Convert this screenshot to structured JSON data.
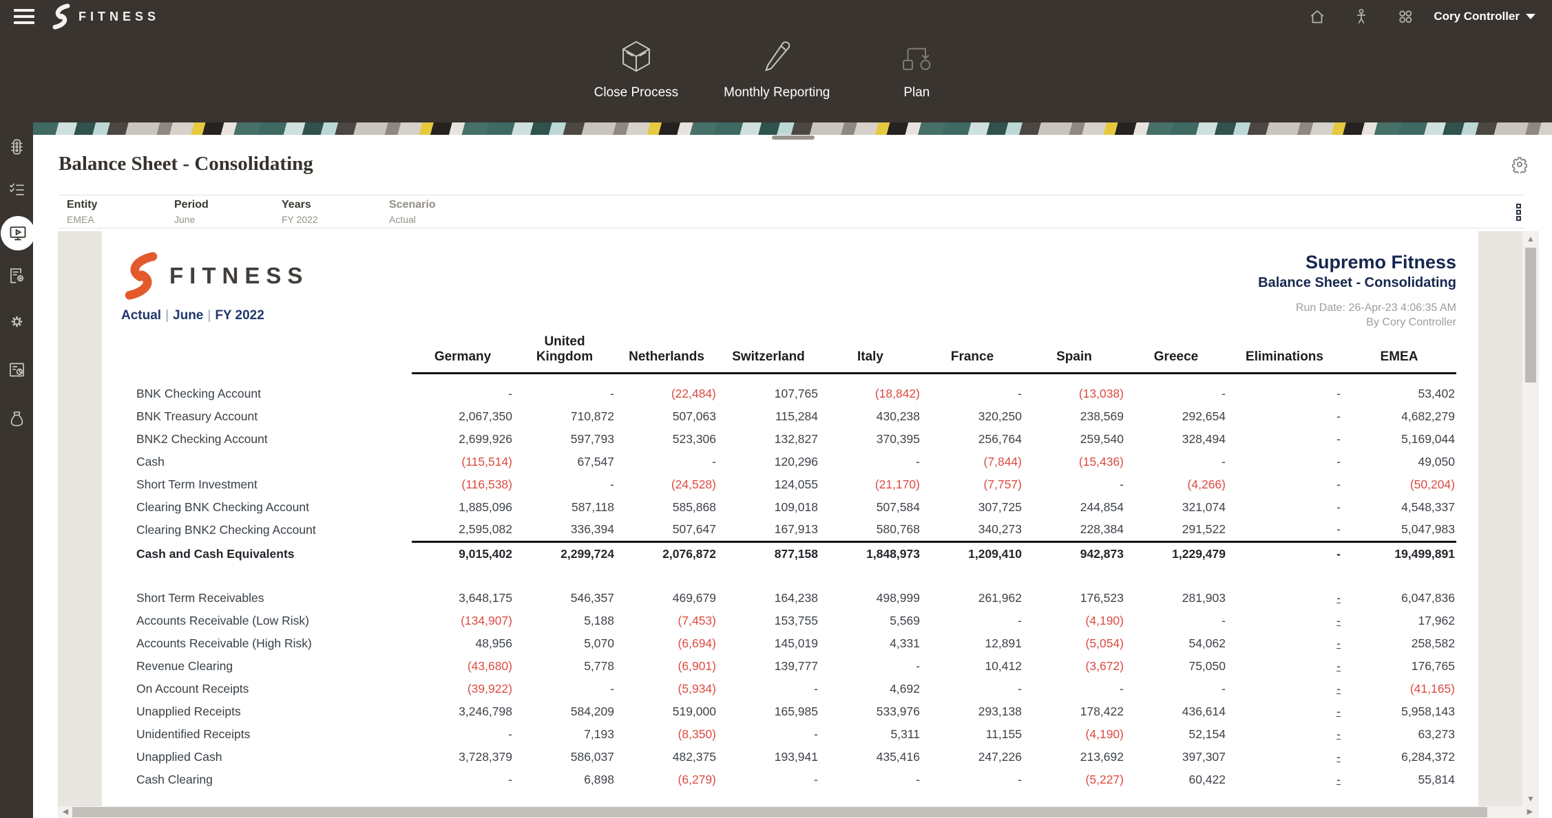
{
  "colors": {
    "header_bg": "#39342f",
    "accent_orange": "#e25a2c",
    "negative_red": "#dc4b41",
    "navy": "#16274f",
    "canvas_grey": "#e9e6e2"
  },
  "topbar": {
    "brand": "FITNESS",
    "user": "Cory Controller",
    "icons": [
      "home-icon",
      "person-icon",
      "waffle-grid-icon"
    ]
  },
  "nav_cards": [
    {
      "label": "Close Process",
      "icon": "cube-icon"
    },
    {
      "label": "Monthly Reporting",
      "icon": "pencil-icon"
    },
    {
      "label": "Plan",
      "icon": "flow-icon"
    }
  ],
  "sidebar": {
    "items": [
      {
        "icon": "approvals-icon",
        "active": false
      },
      {
        "icon": "tasks-icon",
        "active": false
      },
      {
        "icon": "reports-player-icon",
        "active": true
      },
      {
        "icon": "form-settings-icon",
        "active": false
      },
      {
        "icon": "gear-icon",
        "active": false
      },
      {
        "icon": "dashboard-icon",
        "active": false
      },
      {
        "icon": "money-bag-icon",
        "active": false
      }
    ]
  },
  "page": {
    "title": "Balance Sheet - Consolidating"
  },
  "pov": [
    {
      "label": "Entity",
      "value": "EMEA",
      "muted": false
    },
    {
      "label": "Period",
      "value": "June",
      "muted": false
    },
    {
      "label": "Years",
      "value": "FY 2022",
      "muted": false
    },
    {
      "label": "Scenario",
      "value": "Actual",
      "muted": true
    }
  ],
  "report": {
    "brand": "FITNESS",
    "pov_line": {
      "scenario": "Actual",
      "period": "June",
      "year": "FY 2022",
      "separator": "|"
    },
    "company": "Supremo Fitness",
    "title": "Balance Sheet - Consolidating",
    "run_date": "Run Date: 26-Apr-23 4:06:35 AM",
    "run_by": "By Cory Controller",
    "table": {
      "columns": [
        "Germany",
        "United\nKingdom",
        "Netherlands",
        "Switzerland",
        "Italy",
        "France",
        "Spain",
        "Greece",
        "Eliminations",
        "EMEA"
      ],
      "rows": [
        {
          "label": "BNK Checking Account",
          "v": [
            "-",
            "-",
            "(22,484)",
            "107,765",
            "(18,842)",
            "-",
            "(13,038)",
            "-",
            "-",
            "53,402"
          ]
        },
        {
          "label": "BNK Treasury Account",
          "v": [
            "2,067,350",
            "710,872",
            "507,063",
            "115,284",
            "430,238",
            "320,250",
            "238,569",
            "292,654",
            "-",
            "4,682,279"
          ]
        },
        {
          "label": "BNK2 Checking Account",
          "v": [
            "2,699,926",
            "597,793",
            "523,306",
            "132,827",
            "370,395",
            "256,764",
            "259,540",
            "328,494",
            "-",
            "5,169,044"
          ]
        },
        {
          "label": "Cash",
          "v": [
            "(115,514)",
            "67,547",
            "-",
            "120,296",
            "-",
            "(7,844)",
            "(15,436)",
            "-",
            "-",
            "49,050"
          ]
        },
        {
          "label": "Short Term Investment",
          "v": [
            "(116,538)",
            "-",
            "(24,528)",
            "124,055",
            "(21,170)",
            "(7,757)",
            "-",
            "(4,266)",
            "-",
            "(50,204)"
          ]
        },
        {
          "label": "Clearing BNK Checking Account",
          "v": [
            "1,885,096",
            "587,118",
            "585,868",
            "109,018",
            "507,584",
            "307,725",
            "244,854",
            "321,074",
            "-",
            "4,548,337"
          ]
        },
        {
          "label": "Clearing BNK2 Checking Account",
          "rule_below": true,
          "v": [
            "2,595,082",
            "336,394",
            "507,647",
            "167,913",
            "580,768",
            "340,273",
            "228,384",
            "291,522",
            "-",
            "5,047,983"
          ]
        },
        {
          "label": "Cash and Cash Equivalents",
          "bold": true,
          "space_after": true,
          "v": [
            "9,015,402",
            "2,299,724",
            "2,076,872",
            "877,158",
            "1,848,973",
            "1,209,410",
            "942,873",
            "1,229,479",
            "-",
            "19,499,891"
          ]
        },
        {
          "label": "Short Term Receivables",
          "elim_link": true,
          "v": [
            "3,648,175",
            "546,357",
            "469,679",
            "164,238",
            "498,999",
            "261,962",
            "176,523",
            "281,903",
            "-",
            "6,047,836"
          ]
        },
        {
          "label": "Accounts Receivable (Low Risk)",
          "elim_link": true,
          "v": [
            "(134,907)",
            "5,188",
            "(7,453)",
            "153,755",
            "5,569",
            "-",
            "(4,190)",
            "-",
            "-",
            "17,962"
          ]
        },
        {
          "label": "Accounts Receivable (High Risk)",
          "elim_link": true,
          "v": [
            "48,956",
            "5,070",
            "(6,694)",
            "145,019",
            "4,331",
            "12,891",
            "(5,054)",
            "54,062",
            "-",
            "258,582"
          ]
        },
        {
          "label": "Revenue Clearing",
          "elim_link": true,
          "v": [
            "(43,680)",
            "5,778",
            "(6,901)",
            "139,777",
            "-",
            "10,412",
            "(3,672)",
            "75,050",
            "-",
            "176,765"
          ]
        },
        {
          "label": "On Account Receipts",
          "elim_link": true,
          "v": [
            "(39,922)",
            "-",
            "(5,934)",
            "-",
            "4,692",
            "-",
            "-",
            "-",
            "-",
            "(41,165)"
          ]
        },
        {
          "label": "Unapplied Receipts",
          "elim_link": true,
          "v": [
            "3,246,798",
            "584,209",
            "519,000",
            "165,985",
            "533,976",
            "293,138",
            "178,422",
            "436,614",
            "-",
            "5,958,143"
          ]
        },
        {
          "label": "Unidentified Receipts",
          "elim_link": true,
          "v": [
            "-",
            "7,193",
            "(8,350)",
            "-",
            "5,311",
            "11,155",
            "(4,190)",
            "52,154",
            "-",
            "63,273"
          ]
        },
        {
          "label": "Unapplied Cash",
          "elim_link": true,
          "v": [
            "3,728,379",
            "586,037",
            "482,375",
            "193,941",
            "435,416",
            "247,226",
            "213,692",
            "397,307",
            "-",
            "6,284,372"
          ]
        },
        {
          "label": "Cash Clearing",
          "elim_link": true,
          "v": [
            "-",
            "6,898",
            "(6,279)",
            "-",
            "-",
            "-",
            "(5,227)",
            "60,422",
            "-",
            "55,814"
          ]
        }
      ]
    }
  }
}
